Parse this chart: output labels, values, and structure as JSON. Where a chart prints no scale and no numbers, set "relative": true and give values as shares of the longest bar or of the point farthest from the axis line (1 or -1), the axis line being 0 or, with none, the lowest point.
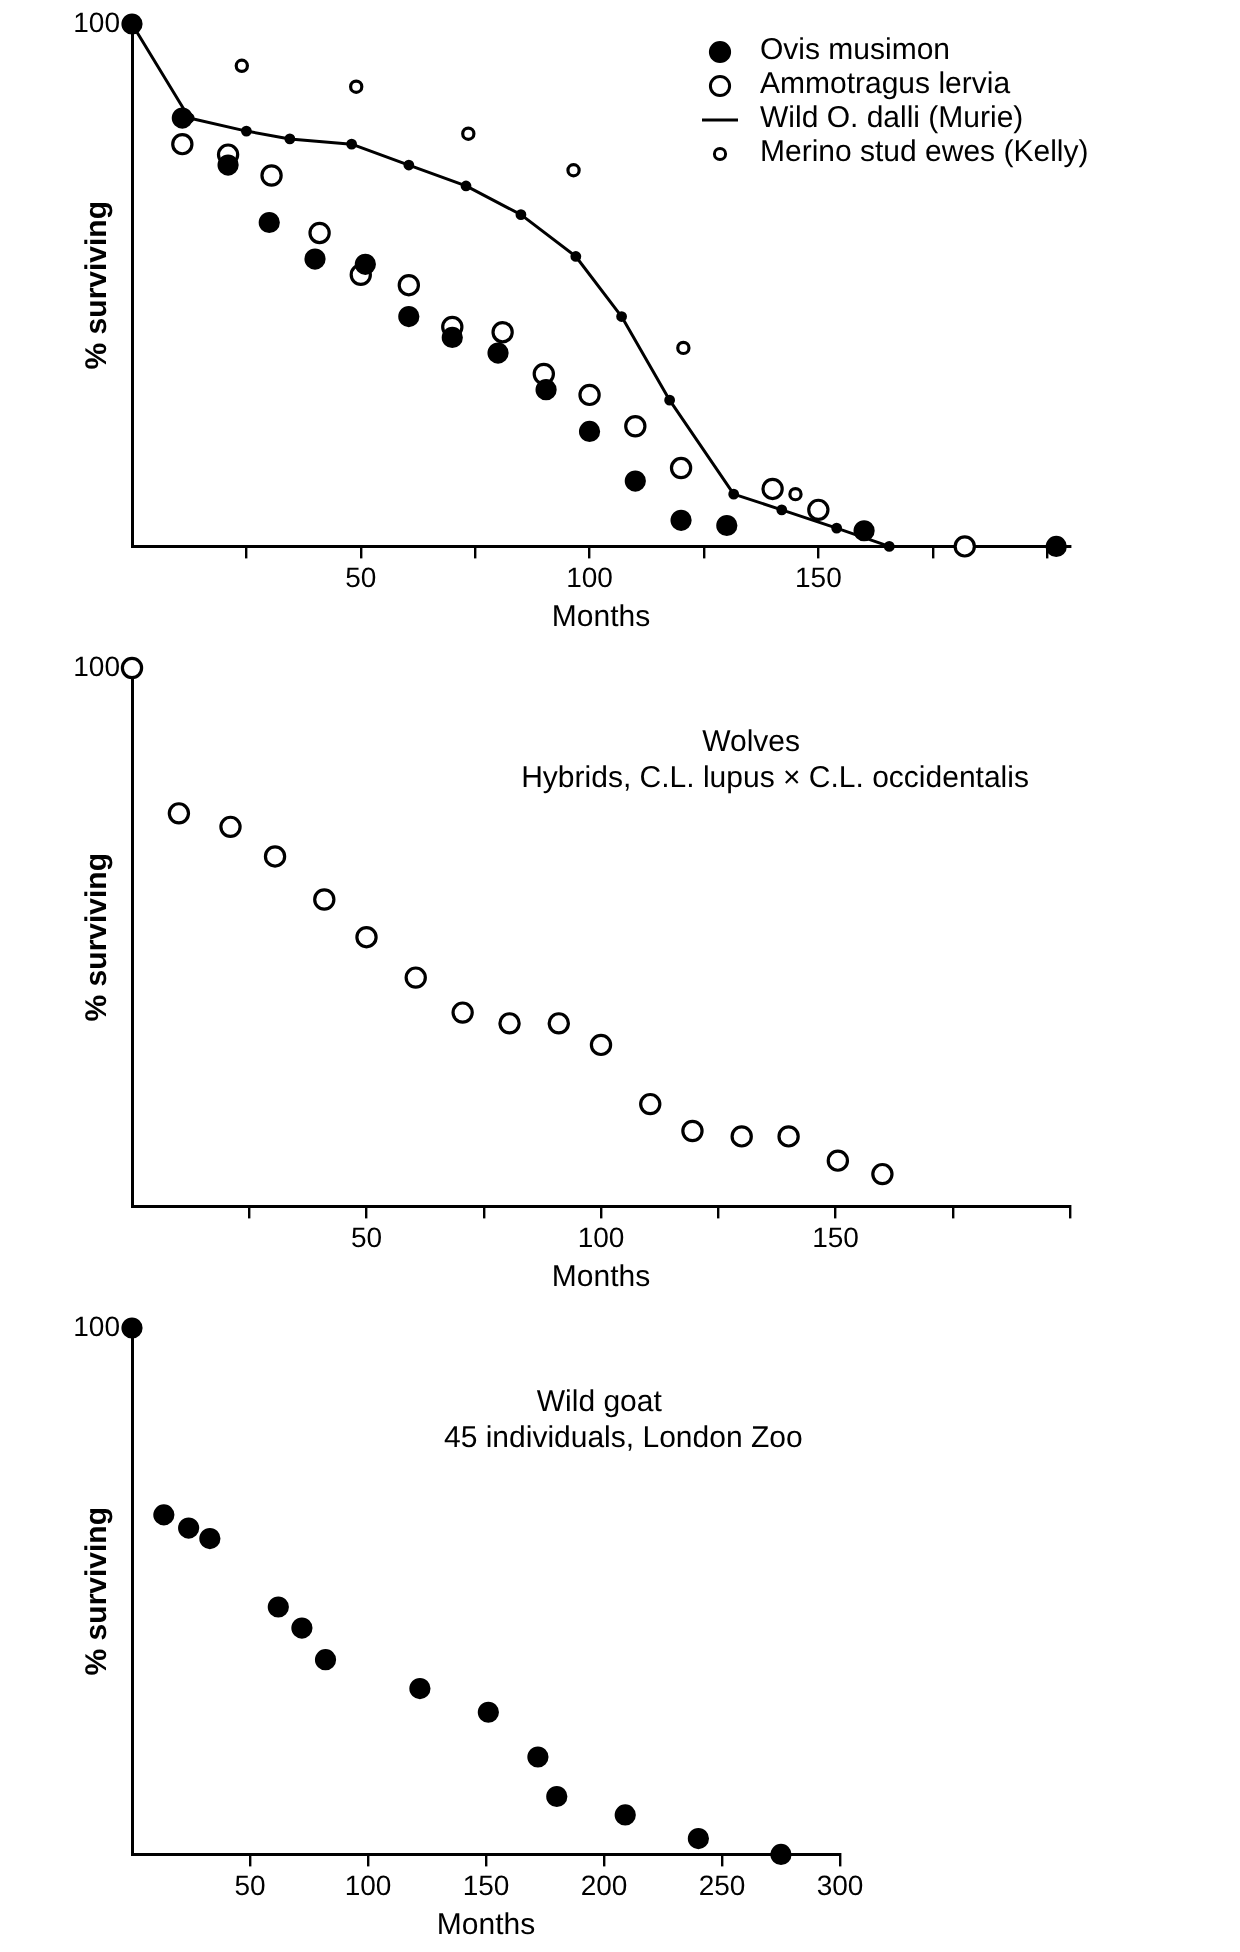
{
  "chart_data": [
    {
      "type": "scatter",
      "relative": true,
      "xlabel": "Months",
      "ylabel": "% surviving",
      "annotations": [
        "100"
      ],
      "xlim": [
        0,
        205
      ],
      "xticks": [
        {
          "value": 25,
          "label": null
        },
        50,
        {
          "value": 75,
          "label": null
        },
        100,
        {
          "value": 125,
          "label": null
        },
        150,
        {
          "value": 175,
          "label": null
        },
        {
          "value": 200,
          "label": null
        }
      ],
      "legend": "top right",
      "series": [
        {
          "name": "Ovis musimon",
          "type": "scatter",
          "marker": "circle",
          "color": "#000000",
          "x": [
            0,
            11,
            21,
            30,
            40,
            51,
            60.5,
            70,
            80,
            90.5,
            100,
            110,
            120,
            130,
            160,
            202
          ],
          "values": [
            1,
            0.82,
            0.73,
            0.62,
            0.55,
            0.54,
            0.44,
            0.4,
            0.37,
            0.3,
            0.22,
            0.125,
            0.05,
            0.04,
            0.03,
            0
          ]
        },
        {
          "name": "Ammotragus lervia",
          "type": "scatter",
          "marker": "circle",
          "color": "#ffffff",
          "x": [
            11,
            21,
            30.5,
            41,
            50,
            60.5,
            70,
            81,
            90,
            100,
            110,
            120,
            140,
            150,
            182
          ],
          "values": [
            0.77,
            0.75,
            0.71,
            0.6,
            0.52,
            0.5,
            0.42,
            0.41,
            0.33,
            0.29,
            0.23,
            0.15,
            0.11,
            0.07,
            0
          ]
        },
        {
          "name": "Wild O. dalli (Murie)",
          "type": "line",
          "marker": "circle",
          "line_style": "solid",
          "color": "#000000",
          "x": [
            0,
            12.5,
            25,
            34.5,
            48,
            60.5,
            73,
            85,
            97,
            107,
            117.5,
            131.5,
            142,
            154,
            165.5
          ],
          "values": [
            1,
            0.82,
            0.795,
            0.78,
            0.77,
            0.73,
            0.69,
            0.635,
            0.555,
            0.44,
            0.28,
            0.1,
            0.07,
            0.035,
            0
          ]
        },
        {
          "name": "Merino stud ewes (Kelly)",
          "type": "scatter",
          "marker": "circle",
          "color": "#ffffff",
          "x": [
            24,
            49,
            73.5,
            96.5,
            120.5,
            145
          ],
          "values": [
            0.92,
            0.88,
            0.79,
            0.72,
            0.38,
            0.1
          ]
        }
      ]
    },
    {
      "type": "scatter",
      "relative": true,
      "title": "Wolves",
      "subtitle": "Hybrids, C.L. lupus × C.L. occidentalis",
      "xlabel": "Months",
      "ylabel": "% surviving",
      "annotations": [
        "100"
      ],
      "xlim": [
        0,
        200
      ],
      "xticks": [
        {
          "value": 25,
          "label": null
        },
        50,
        {
          "value": 75,
          "label": null
        },
        100,
        {
          "value": 125,
          "label": null
        },
        150,
        {
          "value": 175,
          "label": null
        },
        {
          "value": 200,
          "label": null
        }
      ],
      "series": [
        {
          "type": "scatter",
          "marker": "circle",
          "color": "#ffffff",
          "x": [
            0,
            10,
            21,
            30.5,
            41,
            50,
            60.5,
            70.5,
            80.5,
            91,
            100,
            110.5,
            119.5,
            130,
            140,
            150.5,
            160
          ],
          "values": [
            1,
            0.73,
            0.705,
            0.65,
            0.57,
            0.5,
            0.425,
            0.36,
            0.34,
            0.34,
            0.3,
            0.19,
            0.14,
            0.13,
            0.13,
            0.085,
            0.06
          ]
        }
      ]
    },
    {
      "type": "scatter",
      "relative": true,
      "title": "Wild goat",
      "subtitle": "45 individuals, London Zoo",
      "xlabel": "Months",
      "ylabel": "% surviving",
      "annotations": [
        "100"
      ],
      "xlim": [
        0,
        300
      ],
      "xticks": [
        50,
        100,
        150,
        200,
        250,
        300
      ],
      "series": [
        {
          "type": "scatter",
          "marker": "circle",
          "color": "#000000",
          "x": [
            0,
            13.5,
            24,
            33,
            62,
            72,
            82,
            122,
            151,
            172,
            180,
            209,
            240,
            275
          ],
          "values": [
            1,
            0.645,
            0.62,
            0.6,
            0.47,
            0.43,
            0.37,
            0.315,
            0.27,
            0.185,
            0.11,
            0.075,
            0.03,
            0
          ]
        }
      ]
    }
  ]
}
